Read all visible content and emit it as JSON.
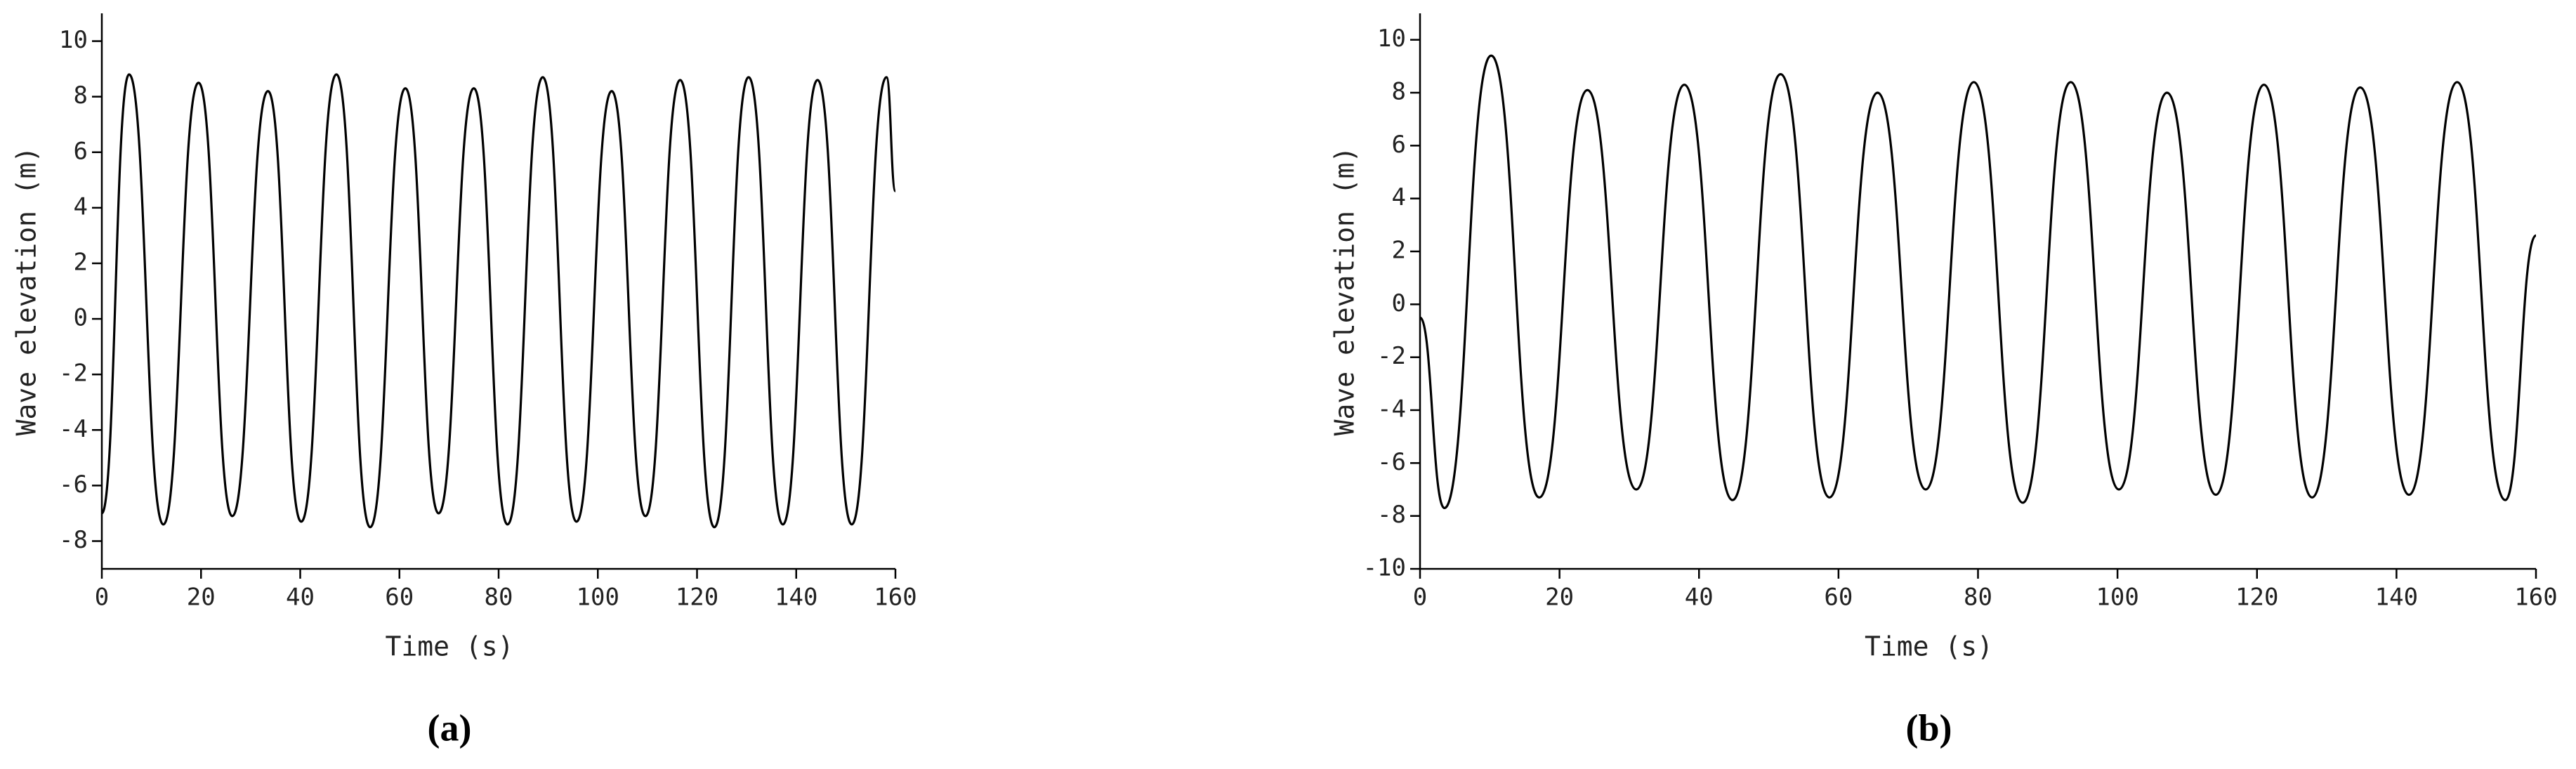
{
  "chart_data": [
    {
      "type": "line",
      "caption": "(a)",
      "x_label": "Time (s)",
      "y_label": "Wave elevation (m)",
      "color": "#000000",
      "x": [
        0,
        5.5,
        12.4,
        19.5,
        26.3,
        33.5,
        40.2,
        47.3,
        54.1,
        61.2,
        67.9,
        75,
        81.8,
        88.9,
        95.7,
        102.8,
        109.6,
        116.6,
        123.5,
        130.4,
        137.3,
        144.3,
        151.2,
        158.2,
        160
      ],
      "values": [
        -7,
        8.8,
        -7.4,
        8.5,
        -7.1,
        8.2,
        -7.3,
        8.8,
        -7.5,
        8.3,
        -7.0,
        8.3,
        -7.4,
        8.7,
        -7.3,
        8.2,
        -7.1,
        8.6,
        -7.5,
        8.7,
        -7.4,
        8.6,
        -7.4,
        8.7,
        4.6
      ],
      "xlim": [
        0,
        160
      ],
      "xticks": [
        0,
        20,
        40,
        60,
        80,
        100,
        120,
        140,
        160
      ],
      "ylim": [
        -9,
        11
      ],
      "yticks": [
        -8,
        -6,
        -4,
        -2,
        0,
        2,
        4,
        6,
        8,
        10
      ]
    },
    {
      "type": "line",
      "caption": "(b)",
      "x_label": "Time (s)",
      "y_label": "Wave elevation (m)",
      "color": "#000000",
      "x": [
        0,
        3.5,
        10.2,
        17.1,
        24,
        31,
        37.9,
        44.8,
        51.7,
        58.7,
        65.6,
        72.5,
        79.4,
        86.4,
        93.3,
        100.2,
        107.1,
        114.1,
        121,
        127.9,
        134.8,
        141.8,
        148.7,
        155.6,
        160
      ],
      "values": [
        -0.5,
        -7.7,
        9.4,
        -7.3,
        8.1,
        -7.0,
        8.3,
        -7.4,
        8.7,
        -7.3,
        8.0,
        -7.0,
        8.4,
        -7.5,
        8.4,
        -7.0,
        8.0,
        -7.2,
        8.3,
        -7.3,
        8.2,
        -7.2,
        8.4,
        -7.4,
        2.6
      ],
      "xlim": [
        0,
        160
      ],
      "xticks": [
        0,
        20,
        40,
        60,
        80,
        100,
        120,
        140,
        160
      ],
      "ylim": [
        -10,
        11
      ],
      "yticks": [
        -10,
        -8,
        -6,
        -4,
        -2,
        0,
        2,
        4,
        6,
        8,
        10
      ]
    }
  ]
}
